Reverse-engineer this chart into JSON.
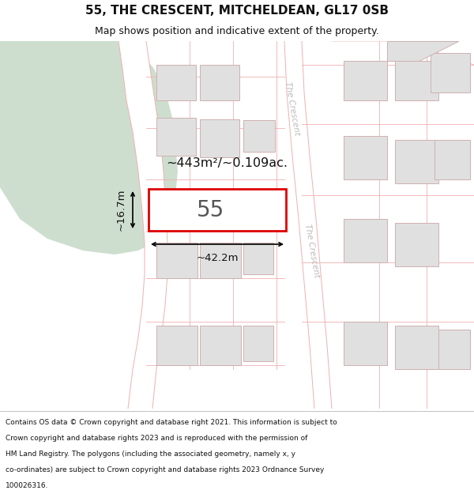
{
  "title": "55, THE CRESCENT, MITCHELDEAN, GL17 0SB",
  "subtitle": "Map shows position and indicative extent of the property.",
  "footer_lines": [
    "Contains OS data © Crown copyright and database right 2021. This information is subject to",
    "Crown copyright and database rights 2023 and is reproduced with the permission of",
    "HM Land Registry. The polygons (including the associated geometry, namely x, y",
    "co-ordinates) are subject to Crown copyright and database rights 2023 Ordnance Survey",
    "100026316."
  ],
  "background_color": "#ffffff",
  "green_area_color": "#cddece",
  "plot_outline_color": "#dd0000",
  "plot_fill_color": "#ffffff",
  "plot_label": "55",
  "area_label": "~443m²/~0.109ac.",
  "width_label": "~42.2m",
  "height_label": "~16.7m",
  "road_label_1": "The Crescent",
  "road_label_2": "The Crescent",
  "grid_line_color": "#f0b0b0",
  "building_color": "#e0e0e0",
  "building_outline": "#d0b0b0"
}
